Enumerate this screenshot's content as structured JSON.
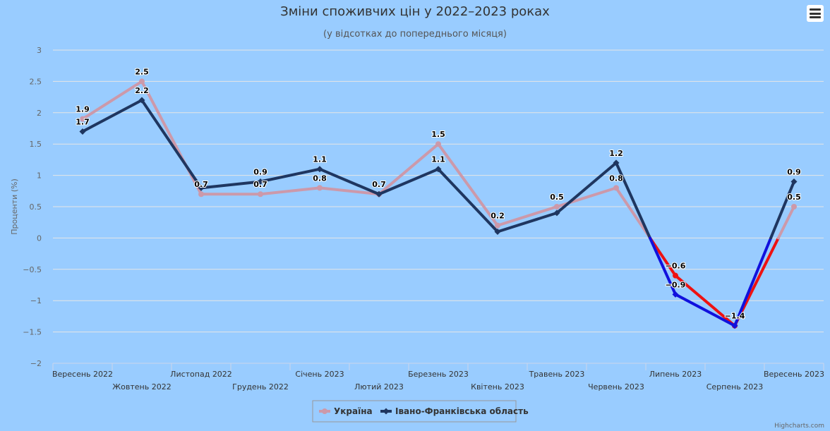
{
  "title": "Зміни споживчих цін у 2022–2023 роках",
  "subtitle": "(у відсотках до попереднього місяця)",
  "credits": "Highcharts.com",
  "menu": {
    "icon": "hamburger-menu-icon"
  },
  "chart_data": {
    "type": "line",
    "ylabel": "Проценти (%)",
    "xlabel": "",
    "ylim": [
      -2,
      3
    ],
    "yticks": [
      3,
      2.5,
      2,
      1.5,
      1,
      0.5,
      0,
      -0.5,
      -1,
      -1.5,
      -2
    ],
    "yticklabels": [
      "3",
      "2.5",
      "2",
      "1.5",
      "1",
      "0.5",
      "0",
      "−0.5",
      "−1",
      "−1.5",
      "−2"
    ],
    "categories": [
      "Вересень 2022",
      "Жовтень 2022",
      "Листопад 2022",
      "Грудень 2022",
      "Січень 2023",
      "Лютий 2023",
      "Березень 2023",
      "Квітень 2023",
      "Травень 2023",
      "Червень 2023",
      "Липень 2023",
      "Серпень 2023",
      "Вересень 2023"
    ],
    "grid": true,
    "legend_position": "bottom-center",
    "series": [
      {
        "name": "Україна",
        "color": "#cc99aa",
        "negative_color": "#ee1111",
        "values": [
          1.9,
          2.5,
          0.7,
          0.7,
          0.8,
          0.7,
          1.5,
          0.2,
          0.5,
          0.8,
          -0.6,
          -1.4,
          0.5
        ],
        "labels": [
          "1.9",
          "2.5",
          "0.7",
          "0.7",
          "0.8",
          "0.7",
          "1.5",
          "0.2",
          "0.5",
          "0.8",
          "−0.6",
          "−1.4",
          "0.5"
        ]
      },
      {
        "name": "Івано-Франківська область",
        "color": "#1f3660",
        "negative_color": "#1111dd",
        "values": [
          1.7,
          2.2,
          0.8,
          0.9,
          1.1,
          0.7,
          1.1,
          0.1,
          0.4,
          1.2,
          -0.9,
          -1.4,
          0.9
        ],
        "labels": [
          "1.7",
          "2.2",
          "",
          "0.9",
          "1.1",
          "",
          "1.1",
          "",
          "",
          "1.2",
          "−0.9",
          "",
          "0.9"
        ]
      }
    ]
  }
}
